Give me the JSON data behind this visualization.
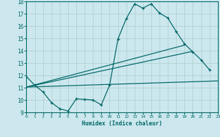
{
  "background_color": "#cce8ee",
  "grid_color": "#aacccc",
  "line_color": "#006666",
  "xlabel": "Humidex (Indice chaleur)",
  "xlim": [
    0,
    23
  ],
  "ylim": [
    9,
    18
  ],
  "xticks": [
    0,
    1,
    2,
    3,
    4,
    5,
    6,
    7,
    8,
    9,
    10,
    11,
    12,
    13,
    14,
    15,
    16,
    17,
    18,
    19,
    20,
    21,
    22,
    23
  ],
  "yticks": [
    9,
    10,
    11,
    12,
    13,
    14,
    15,
    16,
    17,
    18
  ],
  "line1_x": [
    0,
    1,
    2,
    3,
    4,
    5,
    6,
    7,
    8,
    9,
    10,
    11,
    12,
    13,
    14,
    15,
    16,
    17,
    18,
    19,
    20,
    21,
    22
  ],
  "line1_y": [
    11.9,
    11.2,
    10.65,
    9.8,
    9.3,
    9.1,
    10.1,
    10.05,
    10.0,
    9.6,
    11.2,
    14.95,
    16.6,
    17.8,
    17.45,
    17.8,
    17.05,
    16.65,
    15.55,
    14.55,
    13.9,
    13.25,
    12.45
  ],
  "line2_x": [
    0,
    23
  ],
  "line2_y": [
    11.05,
    11.55
  ],
  "line3_x": [
    0,
    19
  ],
  "line3_y": [
    11.05,
    14.45
  ],
  "line4_x": [
    0,
    20
  ],
  "line4_y": [
    11.05,
    13.95
  ]
}
